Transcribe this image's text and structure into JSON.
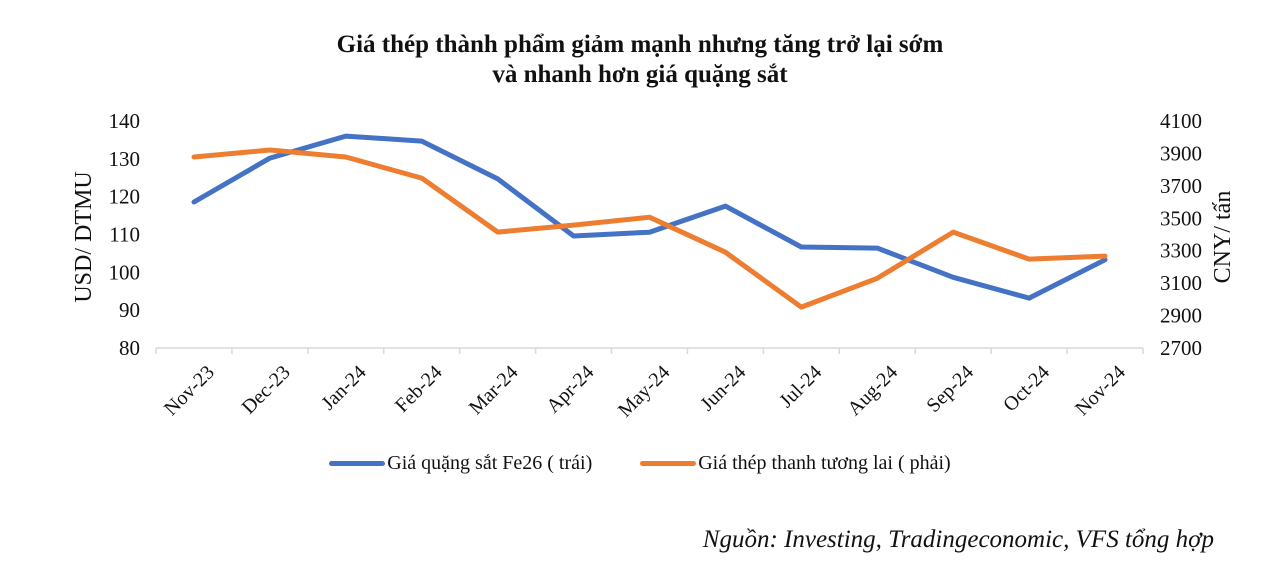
{
  "title": {
    "line1": "Giá thép thành phẩm giảm mạnh nhưng tăng trở lại sớm",
    "line2": "và nhanh hơn giá quặng sắt"
  },
  "legend": {
    "series1": "Giá quặng sắt Fe26 ( trái)",
    "series2": "Giá thép thanh tương lai ( phải)"
  },
  "source": "Nguồn: Investing, Tradingeconomic, VFS tổng hợp",
  "colors": {
    "series1": "#4472C4",
    "series2": "#ED7D31",
    "axis": "#D9D9D9"
  },
  "chart_data": {
    "type": "line",
    "title": "Giá thép thành phẩm giảm mạnh nhưng tăng trở lại sớm và nhanh hơn giá quặng sắt",
    "xlabel": "",
    "ylabel": "USD/ DTMU",
    "y2label": "CNY/ tấn",
    "categories": [
      "Nov-23",
      "Dec-23",
      "Jan-24",
      "Feb-24",
      "Mar-24",
      "Apr-24",
      "May-24",
      "Jun-24",
      "Jul-24",
      "Aug-24",
      "Sep-24",
      "Oct-24",
      "Nov-24"
    ],
    "ylim": [
      80,
      140
    ],
    "y2lim": [
      2700,
      4100
    ],
    "yticks": [
      140,
      130,
      120,
      110,
      100,
      90,
      80
    ],
    "y2ticks": [
      4100,
      3900,
      3700,
      3500,
      3300,
      3100,
      2900,
      2700
    ],
    "grid": false,
    "legend_position": "bottom",
    "series": [
      {
        "name": "Giá quặng sắt Fe26 ( trái)",
        "axis": "left",
        "color": "#4472C4",
        "values": [
          118.6,
          130.2,
          136.0,
          134.7,
          124.7,
          109.6,
          110.6,
          117.5,
          106.7,
          106.4,
          98.7,
          93.2,
          103.3
        ]
      },
      {
        "name": "Giá thép thanh tương lai ( phải)",
        "axis": "right",
        "color": "#ED7D31",
        "values": [
          3878,
          3921,
          3878,
          3748,
          3415,
          3458,
          3507,
          3291,
          2952,
          3130,
          3415,
          3248,
          3267
        ]
      }
    ]
  }
}
